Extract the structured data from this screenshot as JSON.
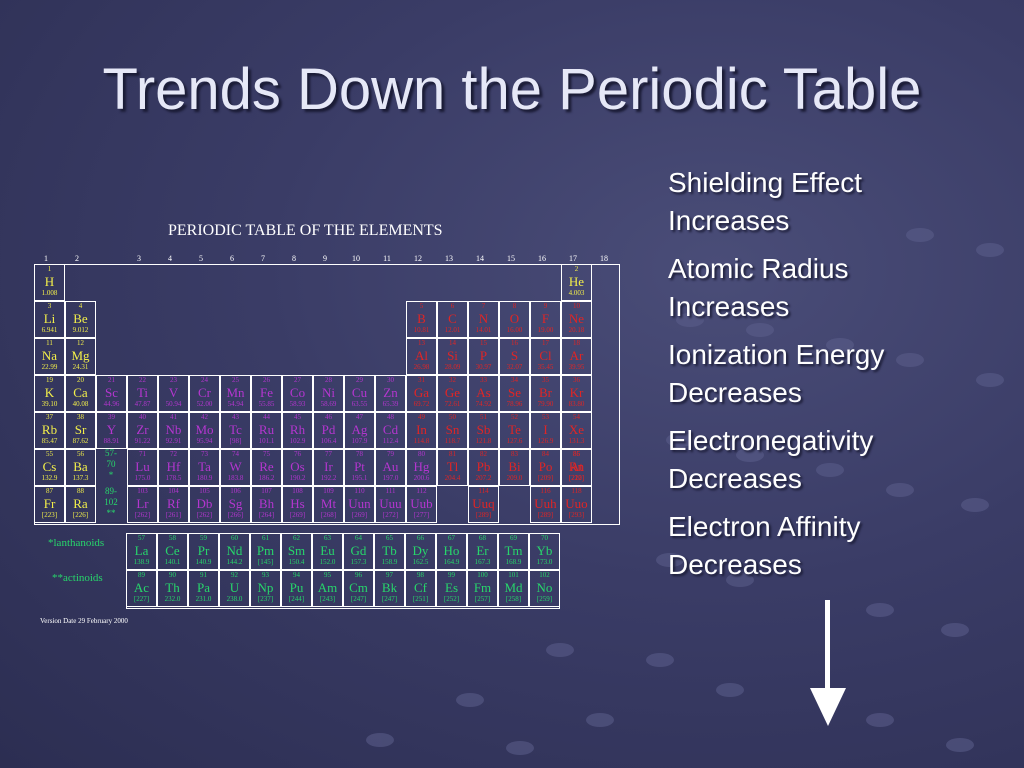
{
  "slide": {
    "title": "Trends Down the Periodic Table"
  },
  "periodic_table": {
    "title": "PERIODIC TABLE OF THE ELEMENTS",
    "group_numbers": [
      "1",
      "2",
      "3",
      "4",
      "5",
      "6",
      "7",
      "8",
      "9",
      "10",
      "11",
      "12",
      "13",
      "14",
      "15",
      "16",
      "17",
      "18"
    ],
    "lanthanoids_label": "*lanthanoids",
    "actinoids_label": "**actinoids",
    "lanthanide_placeholder": [
      "57-",
      "70",
      "*"
    ],
    "actinide_placeholder": [
      "89-",
      "102",
      "**"
    ],
    "version_note": "Version Date 29 February 2000",
    "colors": {
      "yellow": "#f3ef4a",
      "red": "#e02525",
      "purple": "#b436cf",
      "green": "#27d66b"
    },
    "elements": [
      {
        "n": "1",
        "s": "H",
        "m": "1.008",
        "row": 1,
        "col": 1,
        "c": "yellow"
      },
      {
        "n": "2",
        "s": "He",
        "m": "4.003",
        "row": 1,
        "col": 18,
        "c": "yellow"
      },
      {
        "n": "3",
        "s": "Li",
        "m": "6.941",
        "row": 2,
        "col": 1,
        "c": "yellow"
      },
      {
        "n": "4",
        "s": "Be",
        "m": "9.012",
        "row": 2,
        "col": 2,
        "c": "yellow"
      },
      {
        "n": "5",
        "s": "B",
        "m": "10.81",
        "row": 2,
        "col": 13,
        "c": "red"
      },
      {
        "n": "6",
        "s": "C",
        "m": "12.01",
        "row": 2,
        "col": 14,
        "c": "red"
      },
      {
        "n": "7",
        "s": "N",
        "m": "14.01",
        "row": 2,
        "col": 15,
        "c": "red"
      },
      {
        "n": "8",
        "s": "O",
        "m": "16.00",
        "row": 2,
        "col": 16,
        "c": "red"
      },
      {
        "n": "9",
        "s": "F",
        "m": "19.00",
        "row": 2,
        "col": 17,
        "c": "red"
      },
      {
        "n": "10",
        "s": "Ne",
        "m": "20.18",
        "row": 2,
        "col": 18,
        "c": "red"
      },
      {
        "n": "11",
        "s": "Na",
        "m": "22.99",
        "row": 3,
        "col": 1,
        "c": "yellow"
      },
      {
        "n": "12",
        "s": "Mg",
        "m": "24.31",
        "row": 3,
        "col": 2,
        "c": "yellow"
      },
      {
        "n": "13",
        "s": "Al",
        "m": "26.98",
        "row": 3,
        "col": 13,
        "c": "red"
      },
      {
        "n": "14",
        "s": "Si",
        "m": "28.09",
        "row": 3,
        "col": 14,
        "c": "red"
      },
      {
        "n": "15",
        "s": "P",
        "m": "30.97",
        "row": 3,
        "col": 15,
        "c": "red"
      },
      {
        "n": "16",
        "s": "S",
        "m": "32.07",
        "row": 3,
        "col": 16,
        "c": "red"
      },
      {
        "n": "17",
        "s": "Cl",
        "m": "35.45",
        "row": 3,
        "col": 17,
        "c": "red"
      },
      {
        "n": "18",
        "s": "Ar",
        "m": "39.95",
        "row": 3,
        "col": 18,
        "c": "red"
      },
      {
        "n": "19",
        "s": "K",
        "m": "39.10",
        "row": 4,
        "col": 1,
        "c": "yellow"
      },
      {
        "n": "20",
        "s": "Ca",
        "m": "40.08",
        "row": 4,
        "col": 2,
        "c": "yellow"
      },
      {
        "n": "21",
        "s": "Sc",
        "m": "44.96",
        "row": 4,
        "col": 3,
        "c": "purple"
      },
      {
        "n": "22",
        "s": "Ti",
        "m": "47.87",
        "row": 4,
        "col": 4,
        "c": "purple"
      },
      {
        "n": "23",
        "s": "V",
        "m": "50.94",
        "row": 4,
        "col": 5,
        "c": "purple"
      },
      {
        "n": "24",
        "s": "Cr",
        "m": "52.00",
        "row": 4,
        "col": 6,
        "c": "purple"
      },
      {
        "n": "25",
        "s": "Mn",
        "m": "54.94",
        "row": 4,
        "col": 7,
        "c": "purple"
      },
      {
        "n": "26",
        "s": "Fe",
        "m": "55.85",
        "row": 4,
        "col": 8,
        "c": "purple"
      },
      {
        "n": "27",
        "s": "Co",
        "m": "58.93",
        "row": 4,
        "col": 9,
        "c": "purple"
      },
      {
        "n": "28",
        "s": "Ni",
        "m": "58.69",
        "row": 4,
        "col": 10,
        "c": "purple"
      },
      {
        "n": "29",
        "s": "Cu",
        "m": "63.55",
        "row": 4,
        "col": 11,
        "c": "purple"
      },
      {
        "n": "30",
        "s": "Zn",
        "m": "65.39",
        "row": 4,
        "col": 12,
        "c": "purple"
      },
      {
        "n": "31",
        "s": "Ga",
        "m": "69.72",
        "row": 4,
        "col": 13,
        "c": "red"
      },
      {
        "n": "32",
        "s": "Ge",
        "m": "72.61",
        "row": 4,
        "col": 14,
        "c": "red"
      },
      {
        "n": "33",
        "s": "As",
        "m": "74.92",
        "row": 4,
        "col": 15,
        "c": "red"
      },
      {
        "n": "34",
        "s": "Se",
        "m": "78.96",
        "row": 4,
        "col": 16,
        "c": "red"
      },
      {
        "n": "35",
        "s": "Br",
        "m": "79.90",
        "row": 4,
        "col": 17,
        "c": "red"
      },
      {
        "n": "36",
        "s": "Kr",
        "m": "83.80",
        "row": 4,
        "col": 18,
        "c": "red"
      },
      {
        "n": "37",
        "s": "Rb",
        "m": "85.47",
        "row": 5,
        "col": 1,
        "c": "yellow"
      },
      {
        "n": "38",
        "s": "Sr",
        "m": "87.62",
        "row": 5,
        "col": 2,
        "c": "yellow"
      },
      {
        "n": "39",
        "s": "Y",
        "m": "88.91",
        "row": 5,
        "col": 3,
        "c": "purple"
      },
      {
        "n": "40",
        "s": "Zr",
        "m": "91.22",
        "row": 5,
        "col": 4,
        "c": "purple"
      },
      {
        "n": "41",
        "s": "Nb",
        "m": "92.91",
        "row": 5,
        "col": 5,
        "c": "purple"
      },
      {
        "n": "42",
        "s": "Mo",
        "m": "95.94",
        "row": 5,
        "col": 6,
        "c": "purple"
      },
      {
        "n": "43",
        "s": "Tc",
        "m": "[98]",
        "row": 5,
        "col": 7,
        "c": "purple"
      },
      {
        "n": "44",
        "s": "Ru",
        "m": "101.1",
        "row": 5,
        "col": 8,
        "c": "purple"
      },
      {
        "n": "45",
        "s": "Rh",
        "m": "102.9",
        "row": 5,
        "col": 9,
        "c": "purple"
      },
      {
        "n": "46",
        "s": "Pd",
        "m": "106.4",
        "row": 5,
        "col": 10,
        "c": "purple"
      },
      {
        "n": "47",
        "s": "Ag",
        "m": "107.9",
        "row": 5,
        "col": 11,
        "c": "purple"
      },
      {
        "n": "48",
        "s": "Cd",
        "m": "112.4",
        "row": 5,
        "col": 12,
        "c": "purple"
      },
      {
        "n": "49",
        "s": "In",
        "m": "114.8",
        "row": 5,
        "col": 13,
        "c": "red"
      },
      {
        "n": "50",
        "s": "Sn",
        "m": "118.7",
        "row": 5,
        "col": 14,
        "c": "red"
      },
      {
        "n": "51",
        "s": "Sb",
        "m": "121.8",
        "row": 5,
        "col": 15,
        "c": "red"
      },
      {
        "n": "52",
        "s": "Te",
        "m": "127.6",
        "row": 5,
        "col": 16,
        "c": "red"
      },
      {
        "n": "53",
        "s": "I",
        "m": "126.9",
        "row": 5,
        "col": 17,
        "c": "red"
      },
      {
        "n": "54",
        "s": "Xe",
        "m": "131.3",
        "row": 5,
        "col": 18,
        "c": "red"
      },
      {
        "n": "55",
        "s": "Cs",
        "m": "132.9",
        "row": 6,
        "col": 1,
        "c": "yellow"
      },
      {
        "n": "56",
        "s": "Ba",
        "m": "137.3",
        "row": 6,
        "col": 2,
        "c": "yellow"
      },
      {
        "n": "71",
        "s": "Lu",
        "m": "175.0",
        "row": 6,
        "col": 4,
        "c": "purple"
      },
      {
        "n": "72",
        "s": "Hf",
        "m": "178.5",
        "row": 6,
        "col": 5,
        "c": "purple"
      },
      {
        "n": "73",
        "s": "Ta",
        "m": "180.9",
        "row": 6,
        "col": 6,
        "c": "purple"
      },
      {
        "n": "74",
        "s": "W",
        "m": "183.8",
        "row": 6,
        "col": 7,
        "c": "purple"
      },
      {
        "n": "75",
        "s": "Re",
        "m": "186.2",
        "row": 6,
        "col": 8,
        "c": "purple"
      },
      {
        "n": "76",
        "s": "Os",
        "m": "190.2",
        "row": 6,
        "col": 9,
        "c": "purple"
      },
      {
        "n": "77",
        "s": "Ir",
        "m": "192.2",
        "row": 6,
        "col": 10,
        "c": "purple"
      },
      {
        "n": "78",
        "s": "Pt",
        "m": "195.1",
        "row": 6,
        "col": 11,
        "c": "purple"
      },
      {
        "n": "79",
        "s": "Au",
        "m": "197.0",
        "row": 6,
        "col": 12,
        "c": "purple"
      },
      {
        "n": "80",
        "s": "Hg",
        "m": "200.6",
        "row": 6,
        "col": 13,
        "c": "purple"
      },
      {
        "n": "81",
        "s": "Tl",
        "m": "204.4",
        "row": 6,
        "col": 14,
        "c": "red"
      },
      {
        "n": "82",
        "s": "Pb",
        "m": "207.2",
        "row": 6,
        "col": 15,
        "c": "red"
      },
      {
        "n": "83",
        "s": "Bi",
        "m": "209.0",
        "row": 6,
        "col": 16,
        "c": "red"
      },
      {
        "n": "84",
        "s": "Po",
        "m": "[209]",
        "row": 6,
        "col": 17,
        "c": "red"
      },
      {
        "n": "85",
        "s": "At",
        "m": "[210]",
        "row": 6,
        "col": 18,
        "c": "red"
      },
      {
        "n": "86",
        "s": "Rn",
        "m": "[222]",
        "row": 6,
        "col": 19,
        "c": "red"
      },
      {
        "n": "87",
        "s": "Fr",
        "m": "[223]",
        "row": 7,
        "col": 1,
        "c": "yellow"
      },
      {
        "n": "88",
        "s": "Ra",
        "m": "[226]",
        "row": 7,
        "col": 2,
        "c": "yellow"
      },
      {
        "n": "103",
        "s": "Lr",
        "m": "[262]",
        "row": 7,
        "col": 4,
        "c": "purple"
      },
      {
        "n": "104",
        "s": "Rf",
        "m": "[261]",
        "row": 7,
        "col": 5,
        "c": "purple"
      },
      {
        "n": "105",
        "s": "Db",
        "m": "[262]",
        "row": 7,
        "col": 6,
        "c": "purple"
      },
      {
        "n": "106",
        "s": "Sg",
        "m": "[266]",
        "row": 7,
        "col": 7,
        "c": "purple"
      },
      {
        "n": "107",
        "s": "Bh",
        "m": "[264]",
        "row": 7,
        "col": 8,
        "c": "purple"
      },
      {
        "n": "108",
        "s": "Hs",
        "m": "[269]",
        "row": 7,
        "col": 9,
        "c": "purple"
      },
      {
        "n": "109",
        "s": "Mt",
        "m": "[268]",
        "row": 7,
        "col": 10,
        "c": "purple"
      },
      {
        "n": "110",
        "s": "Uun",
        "m": "[269]",
        "row": 7,
        "col": 11,
        "c": "purple"
      },
      {
        "n": "111",
        "s": "Uuu",
        "m": "[272]",
        "row": 7,
        "col": 12,
        "c": "purple"
      },
      {
        "n": "112",
        "s": "Uub",
        "m": "[277]",
        "row": 7,
        "col": 13,
        "c": "purple"
      },
      {
        "n": "114",
        "s": "Uuq",
        "m": "[289]",
        "row": 7,
        "col": 15,
        "c": "red"
      },
      {
        "n": "116",
        "s": "Uuh",
        "m": "[289]",
        "row": 7,
        "col": 17,
        "c": "red"
      },
      {
        "n": "118",
        "s": "Uuo",
        "m": "[293]",
        "row": 7,
        "col": 19,
        "c": "red"
      },
      {
        "n": "57",
        "s": "La",
        "m": "138.9",
        "row": 8,
        "col": 4,
        "c": "green"
      },
      {
        "n": "58",
        "s": "Ce",
        "m": "140.1",
        "row": 8,
        "col": 5,
        "c": "green"
      },
      {
        "n": "59",
        "s": "Pr",
        "m": "140.9",
        "row": 8,
        "col": 6,
        "c": "green"
      },
      {
        "n": "60",
        "s": "Nd",
        "m": "144.2",
        "row": 8,
        "col": 7,
        "c": "green"
      },
      {
        "n": "61",
        "s": "Pm",
        "m": "[145]",
        "row": 8,
        "col": 8,
        "c": "green"
      },
      {
        "n": "62",
        "s": "Sm",
        "m": "150.4",
        "row": 8,
        "col": 9,
        "c": "green"
      },
      {
        "n": "63",
        "s": "Eu",
        "m": "152.0",
        "row": 8,
        "col": 10,
        "c": "green"
      },
      {
        "n": "64",
        "s": "Gd",
        "m": "157.3",
        "row": 8,
        "col": 11,
        "c": "green"
      },
      {
        "n": "65",
        "s": "Tb",
        "m": "158.9",
        "row": 8,
        "col": 12,
        "c": "green"
      },
      {
        "n": "66",
        "s": "Dy",
        "m": "162.5",
        "row": 8,
        "col": 13,
        "c": "green"
      },
      {
        "n": "67",
        "s": "Ho",
        "m": "164.9",
        "row": 8,
        "col": 14,
        "c": "green"
      },
      {
        "n": "68",
        "s": "Er",
        "m": "167.3",
        "row": 8,
        "col": 15,
        "c": "green"
      },
      {
        "n": "69",
        "s": "Tm",
        "m": "168.9",
        "row": 8,
        "col": 16,
        "c": "green"
      },
      {
        "n": "70",
        "s": "Yb",
        "m": "173.0",
        "row": 8,
        "col": 17,
        "c": "green"
      },
      {
        "n": "89",
        "s": "Ac",
        "m": "[227]",
        "row": 9,
        "col": 4,
        "c": "green"
      },
      {
        "n": "90",
        "s": "Th",
        "m": "232.0",
        "row": 9,
        "col": 5,
        "c": "green"
      },
      {
        "n": "91",
        "s": "Pa",
        "m": "231.0",
        "row": 9,
        "col": 6,
        "c": "green"
      },
      {
        "n": "92",
        "s": "U",
        "m": "238.0",
        "row": 9,
        "col": 7,
        "c": "green"
      },
      {
        "n": "93",
        "s": "Np",
        "m": "[237]",
        "row": 9,
        "col": 8,
        "c": "green"
      },
      {
        "n": "94",
        "s": "Pu",
        "m": "[244]",
        "row": 9,
        "col": 9,
        "c": "green"
      },
      {
        "n": "95",
        "s": "Am",
        "m": "[243]",
        "row": 9,
        "col": 10,
        "c": "green"
      },
      {
        "n": "96",
        "s": "Cm",
        "m": "[247]",
        "row": 9,
        "col": 11,
        "c": "green"
      },
      {
        "n": "97",
        "s": "Bk",
        "m": "[247]",
        "row": 9,
        "col": 12,
        "c": "green"
      },
      {
        "n": "98",
        "s": "Cf",
        "m": "[251]",
        "row": 9,
        "col": 13,
        "c": "green"
      },
      {
        "n": "99",
        "s": "Es",
        "m": "[252]",
        "row": 9,
        "col": 14,
        "c": "green"
      },
      {
        "n": "100",
        "s": "Fm",
        "m": "[257]",
        "row": 9,
        "col": 15,
        "c": "green"
      },
      {
        "n": "101",
        "s": "Md",
        "m": "[258]",
        "row": 9,
        "col": 16,
        "c": "green"
      },
      {
        "n": "102",
        "s": "No",
        "m": "[259]",
        "row": 9,
        "col": 17,
        "c": "green"
      }
    ]
  },
  "trends": [
    {
      "line1": "Shielding Effect",
      "line2": "Increases"
    },
    {
      "line1": "Atomic Radius",
      "line2": "Increases"
    },
    {
      "line1": "Ionization Energy",
      "line2": "Decreases"
    },
    {
      "line1": "Electronegativity",
      "line2": "Decreases"
    },
    {
      "line1": "Electron Affinity",
      "line2": "Decreases"
    }
  ],
  "arrow": {
    "direction": "down",
    "color": "#ffffff"
  }
}
